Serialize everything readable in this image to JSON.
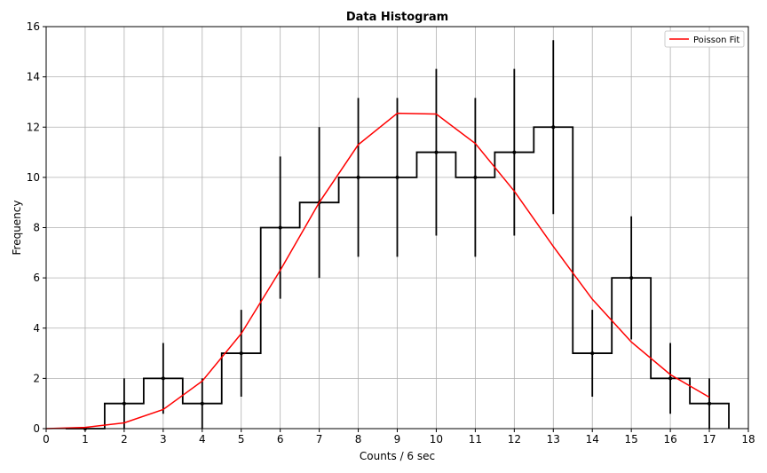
{
  "chart_data": {
    "type": "histogram",
    "title": "Data Histogram",
    "xlabel": "Counts / 6 sec",
    "ylabel": "Frequency",
    "xlim": [
      0,
      18
    ],
    "ylim": [
      0,
      16
    ],
    "xticks": [
      0,
      1,
      2,
      3,
      4,
      5,
      6,
      7,
      8,
      9,
      10,
      11,
      12,
      13,
      14,
      15,
      16,
      17,
      18
    ],
    "yticks": [
      0,
      2,
      4,
      6,
      8,
      10,
      12,
      14,
      16
    ],
    "grid": true,
    "legend_position": "top-right",
    "histogram": {
      "bins": [
        1,
        2,
        3,
        4,
        5,
        6,
        7,
        8,
        9,
        10,
        11,
        12,
        13,
        14,
        15,
        16,
        17
      ],
      "counts": [
        0,
        1,
        2,
        1,
        3,
        8,
        9,
        10,
        10,
        11,
        10,
        11,
        12,
        3,
        6,
        2,
        1
      ],
      "errors": [
        0,
        1,
        1.41,
        1,
        1.73,
        2.83,
        3,
        3.16,
        3.16,
        3.32,
        3.16,
        3.32,
        3.46,
        1.73,
        2.45,
        1.41,
        1
      ],
      "color": "#000000"
    },
    "series": [
      {
        "name": "Poisson Fit",
        "color": "#ff0000",
        "x": [
          0,
          1,
          2,
          3,
          4,
          5,
          6,
          7,
          8,
          9,
          10,
          11,
          12,
          13,
          14,
          15,
          16,
          17
        ],
        "y": [
          0,
          0.05,
          0.23,
          0.76,
          1.89,
          3.78,
          6.3,
          9.0,
          11.3,
          12.55,
          12.52,
          11.35,
          9.45,
          7.25,
          5.15,
          3.45,
          2.15,
          1.25
        ]
      }
    ]
  }
}
